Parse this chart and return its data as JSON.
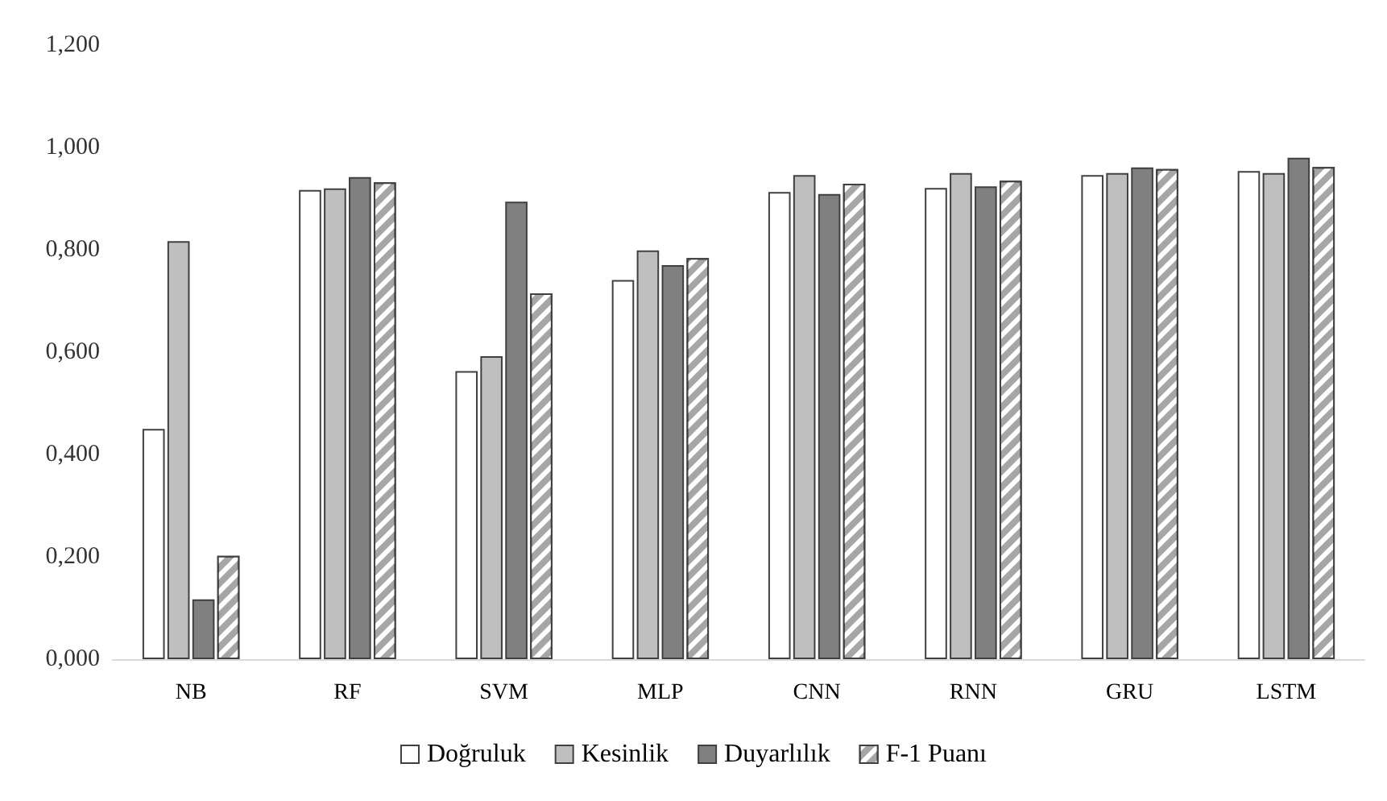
{
  "chart_data": {
    "type": "bar",
    "categories": [
      "NB",
      "RF",
      "SVM",
      "MLP",
      "CNN",
      "RNN",
      "GRU",
      "LSTM"
    ],
    "series": [
      {
        "name": "Doğruluk",
        "color": "#ffffff",
        "values": [
          0.45,
          0.917,
          0.563,
          0.741,
          0.913,
          0.921,
          0.946,
          0.954
        ]
      },
      {
        "name": "Kesinlik",
        "color": "#bfbfbf",
        "values": [
          0.817,
          0.92,
          0.592,
          0.799,
          0.946,
          0.95,
          0.95,
          0.95
        ]
      },
      {
        "name": "Duyarlılık",
        "color": "#808080",
        "values": [
          0.117,
          0.942,
          0.894,
          0.77,
          0.909,
          0.924,
          0.961,
          0.98
        ]
      },
      {
        "name": "F-1 Puanı",
        "color": "#a6a6a6",
        "values": [
          0.202,
          0.932,
          0.715,
          0.784,
          0.929,
          0.935,
          0.958,
          0.962
        ]
      }
    ],
    "ylim": [
      0,
      1.2
    ],
    "yticks": [
      {
        "value": 0,
        "label": "0,000"
      },
      {
        "value": 0.2,
        "label": "0,200"
      },
      {
        "value": 0.4,
        "label": "0,400"
      },
      {
        "value": 0.6,
        "label": "0,600"
      },
      {
        "value": 0.8,
        "label": "0,800"
      },
      {
        "value": 1,
        "label": "1,000"
      },
      {
        "value": 1.2,
        "label": "1,200"
      }
    ],
    "grid": false,
    "legend": "bottom"
  }
}
